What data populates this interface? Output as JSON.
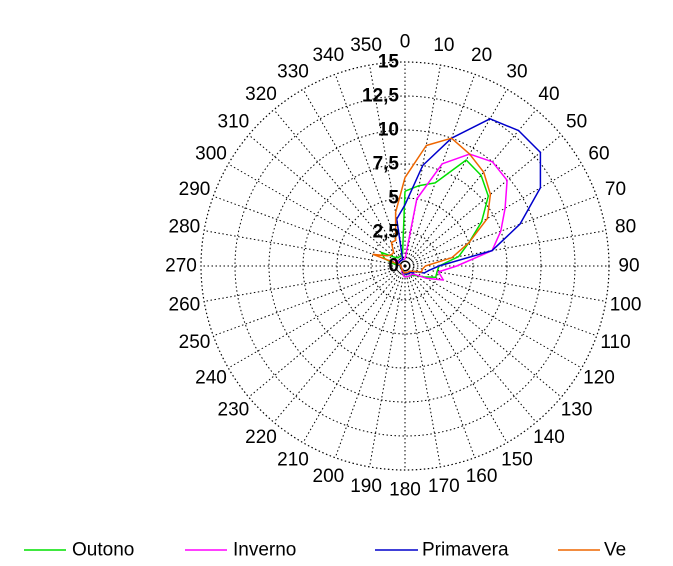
{
  "chart_data": {
    "type": "polar-line",
    "title": "",
    "radial_ticks": [
      "0",
      "2,5",
      "5",
      "7,5",
      "10",
      "12,5",
      "15"
    ],
    "rlim": [
      0,
      15
    ],
    "angle_ticks": [
      "0",
      "10",
      "20",
      "30",
      "40",
      "50",
      "60",
      "70",
      "80",
      "90",
      "100",
      "110",
      "120",
      "130",
      "140",
      "150",
      "160",
      "170",
      "180",
      "190",
      "200",
      "210",
      "220",
      "230",
      "240",
      "250",
      "260",
      "270",
      "280",
      "290",
      "300",
      "310",
      "320",
      "330",
      "340",
      "350"
    ],
    "angle_direction": "clockwise",
    "zero_direction": "top",
    "grid": true,
    "legend_position": "bottom",
    "angles": [
      0,
      10,
      20,
      30,
      40,
      50,
      60,
      70,
      80,
      90,
      100,
      110,
      120,
      130,
      140,
      150,
      160,
      170,
      180,
      190,
      200,
      210,
      220,
      230,
      240,
      250,
      260,
      270,
      280,
      290,
      300,
      310,
      320,
      330,
      340,
      350
    ],
    "series": [
      {
        "name": "Outono",
        "color": "#00e000",
        "values": [
          5.5,
          6.0,
          6.5,
          9.0,
          8.7,
          8.0,
          6.5,
          5.0,
          4.0,
          2.5,
          2.4,
          2.4,
          1.6,
          1.1,
          0.9,
          0.8,
          0.8,
          0.8,
          0.8,
          0.7,
          0.5,
          0.5,
          0.3,
          0.3,
          0.3,
          0.3,
          0.3,
          0.3,
          0.8,
          1.6,
          2.0,
          1.0,
          0.8,
          0.8,
          0.8,
          1.0
        ]
      },
      {
        "name": "Inverno",
        "color": "#ff00ff",
        "values": [
          0.5,
          5.0,
          8.0,
          9.5,
          10.0,
          9.8,
          8.5,
          7.5,
          6.5,
          3.8,
          2.5,
          3.0,
          1.8,
          1.0,
          0.8,
          0.8,
          0.8,
          0.8,
          0.8,
          0.7,
          0.5,
          0.5,
          0.3,
          0.3,
          0.3,
          0.3,
          0.3,
          0.3,
          0.5,
          0.5,
          1.0,
          0.5,
          0.5,
          0.5,
          0.5,
          0.5
        ]
      },
      {
        "name": "Primavera",
        "color": "#0000cc",
        "values": [
          4.5,
          7.5,
          10.0,
          12.5,
          13.0,
          13.0,
          11.5,
          9.0,
          6.5,
          2.5,
          1.8,
          1.5,
          0.8,
          0.8,
          0.6,
          0.6,
          0.6,
          0.6,
          0.6,
          0.5,
          0.5,
          0.3,
          0.3,
          0.3,
          0.3,
          0.3,
          0.3,
          0.3,
          0.5,
          0.5,
          0.5,
          0.5,
          0.5,
          0.5,
          0.5,
          3.5
        ]
      },
      {
        "name": "Verão",
        "color": "#ee6600",
        "values": [
          6.5,
          9.0,
          10.0,
          9.5,
          9.0,
          8.2,
          7.0,
          5.0,
          3.5,
          1.5,
          1.3,
          1.3,
          0.8,
          0.6,
          0.5,
          0.5,
          0.5,
          0.5,
          0.5,
          0.5,
          0.4,
          0.4,
          0.3,
          0.3,
          0.3,
          0.3,
          0.3,
          0.3,
          0.3,
          2.5,
          1.5,
          1.3,
          1.3,
          2.0,
          2.0,
          4.0
        ]
      }
    ]
  },
  "legend": {
    "items": [
      {
        "label": "Outono",
        "color": "#00e000"
      },
      {
        "label": "Inverno",
        "color": "#ff00ff"
      },
      {
        "label": "Primavera",
        "color": "#0000cc"
      },
      {
        "label": "Ve",
        "color": "#ee6600"
      }
    ]
  }
}
